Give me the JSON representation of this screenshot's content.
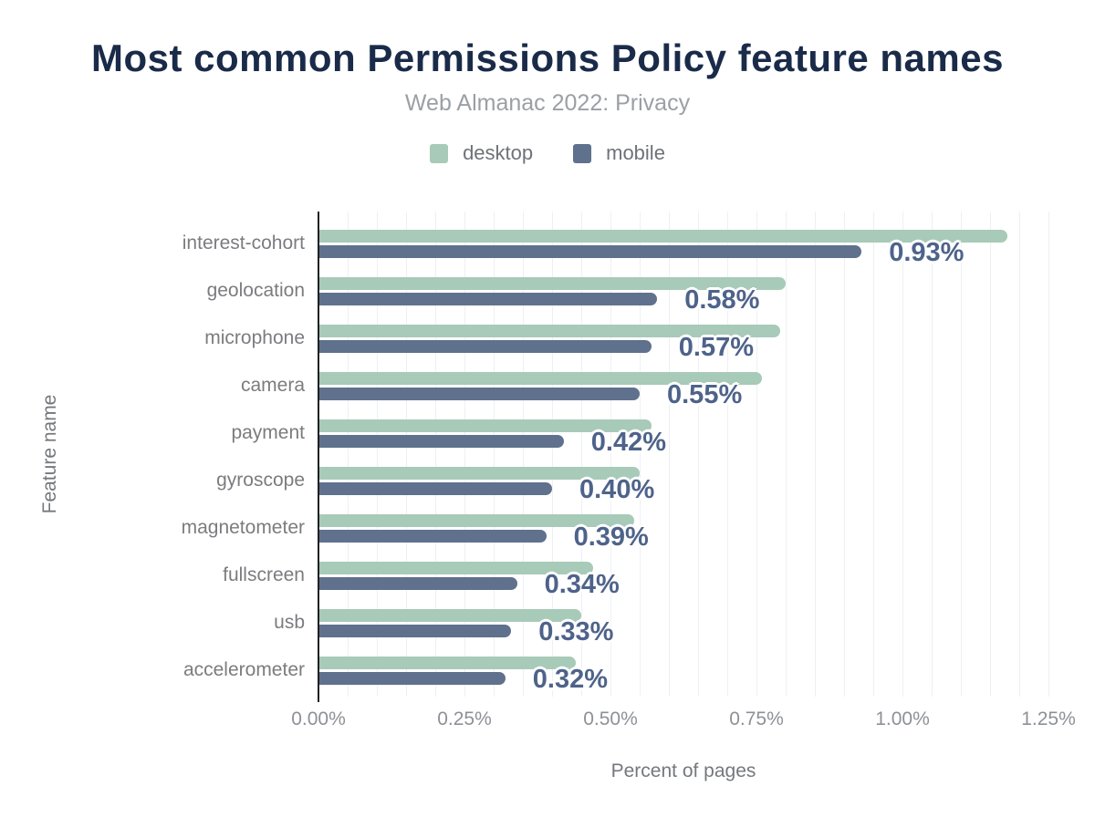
{
  "chart_data": {
    "type": "bar",
    "orientation": "horizontal",
    "title": "Most common Permissions Policy feature names",
    "subtitle": "Web Almanac 2022: Privacy",
    "xlabel": "Percent of pages",
    "ylabel": "Feature name",
    "xlim": [
      0,
      1.25
    ],
    "grid": true,
    "grid_step": 0.05,
    "legend_position": "top",
    "x_ticks": [
      {
        "label": "0.00%",
        "value": 0
      },
      {
        "label": "0.25%",
        "value": 0.25
      },
      {
        "label": "0.50%",
        "value": 0.5
      },
      {
        "label": "0.75%",
        "value": 0.75
      },
      {
        "label": "1.00%",
        "value": 1.0
      },
      {
        "label": "1.25%",
        "value": 1.25
      }
    ],
    "categories": [
      "interest-cohort",
      "geolocation",
      "microphone",
      "camera",
      "payment",
      "gyroscope",
      "magnetometer",
      "fullscreen",
      "usb",
      "accelerometer"
    ],
    "series": [
      {
        "name": "desktop",
        "color": "#a8cab8",
        "values": [
          1.18,
          0.8,
          0.79,
          0.76,
          0.57,
          0.55,
          0.54,
          0.47,
          0.45,
          0.44
        ]
      },
      {
        "name": "mobile",
        "color": "#5f718c",
        "values": [
          0.93,
          0.58,
          0.57,
          0.55,
          0.42,
          0.4,
          0.39,
          0.34,
          0.33,
          0.32
        ]
      }
    ],
    "data_labels": {
      "labeled_series": "mobile",
      "values": [
        "0.93%",
        "0.58%",
        "0.57%",
        "0.55%",
        "0.42%",
        "0.40%",
        "0.39%",
        "0.34%",
        "0.33%",
        "0.32%"
      ],
      "color": "#4e638a"
    },
    "colors": {
      "title": "#1a2b49",
      "subtitle": "#9b9fa6",
      "axis_line": "#212121",
      "gridline": "#eef0f4",
      "tick_label": "#8d9196",
      "axis_title": "#74787d",
      "category_label": "#7c7c80",
      "legend_label": "#6e7278",
      "background": "#ffffff"
    }
  }
}
